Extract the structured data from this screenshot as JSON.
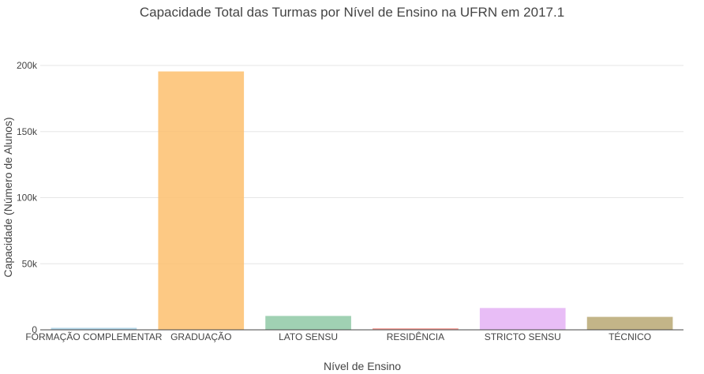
{
  "chart_data": {
    "type": "bar",
    "title": "Capacidade Total das Turmas por Nível de Ensino na UFRN em 2017.1",
    "xlabel": "Nível de Ensino",
    "ylabel": "Capacidade (Número de Alunos)",
    "categories": [
      "FORMAÇÃO COMPLEMENTAR",
      "GRADUAÇÃO",
      "LATO SENSU",
      "RESIDÊNCIA",
      "STRICTO SENSU",
      "TÉCNICO"
    ],
    "values": [
      1500,
      195500,
      10500,
      1200,
      16500,
      9800
    ],
    "colors": [
      "#a6cee3",
      "#fdbf6f",
      "#8fc9a6",
      "#f4978e",
      "#e4b1f5",
      "#b8a873"
    ],
    "ylim": [
      0,
      200000
    ],
    "yticks": [
      0,
      50000,
      100000,
      150000,
      200000
    ],
    "ytick_labels": [
      "0",
      "50k",
      "100k",
      "150k",
      "200k"
    ],
    "grid": true,
    "legend": "none"
  }
}
